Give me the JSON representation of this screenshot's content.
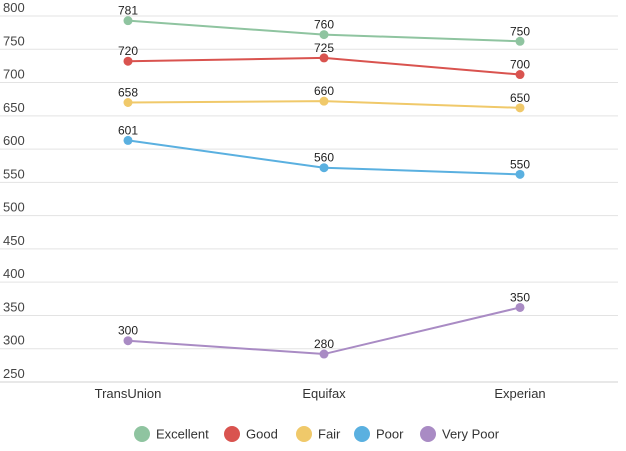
{
  "chart_data": {
    "type": "line",
    "categories": [
      "TransUnion",
      "Equifax",
      "Experian"
    ],
    "series": [
      {
        "name": "Excellent",
        "values": [
          781,
          760,
          750
        ],
        "color": "#8fc4a0"
      },
      {
        "name": "Good",
        "values": [
          720,
          725,
          700
        ],
        "color": "#d9534f"
      },
      {
        "name": "Fair",
        "values": [
          658,
          660,
          650
        ],
        "color": "#f0c96a"
      },
      {
        "name": "Poor",
        "values": [
          601,
          560,
          550
        ],
        "color": "#5ab0e0"
      },
      {
        "name": "Very Poor",
        "values": [
          300,
          280,
          350
        ],
        "color": "#a98bc4"
      }
    ],
    "y_ticks": [
      "800",
      "750",
      "700",
      "650",
      "600",
      "550",
      "500",
      "450",
      "400",
      "350",
      "300",
      "250"
    ],
    "ylim": [
      250,
      800
    ],
    "title": "",
    "xlabel": "",
    "ylabel": "",
    "grid": true,
    "legend_position": "bottom"
  }
}
